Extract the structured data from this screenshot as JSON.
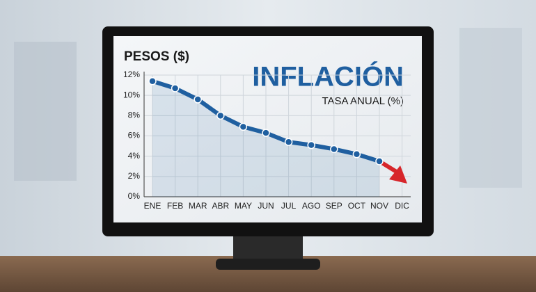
{
  "chart_data": {
    "type": "line",
    "title": "INFLACIÓN",
    "subtitle": "TASA ANUAL (%)",
    "y_label": "PESOS ($)",
    "categories": [
      "ENE",
      "FEB",
      "MAR",
      "ABR",
      "MAY",
      "JUN",
      "JUL",
      "AGO",
      "SEP",
      "OCT",
      "NOV",
      "DIC"
    ],
    "values": [
      11.4,
      10.7,
      9.6,
      8.0,
      6.9,
      6.3,
      5.4,
      5.1,
      4.7,
      4.2,
      3.5,
      null
    ],
    "color": "#1f5fa0",
    "ylim": [
      0,
      12
    ],
    "yticks": [
      {
        "value": 0,
        "label": "0%"
      },
      {
        "value": 2,
        "label": "2%"
      },
      {
        "value": 4,
        "label": "4%"
      },
      {
        "value": 6,
        "label": "6%"
      },
      {
        "value": 8,
        "label": "8%"
      },
      {
        "value": 10,
        "label": "10%"
      },
      {
        "value": 12,
        "label": "12%"
      }
    ],
    "grid": true
  }
}
